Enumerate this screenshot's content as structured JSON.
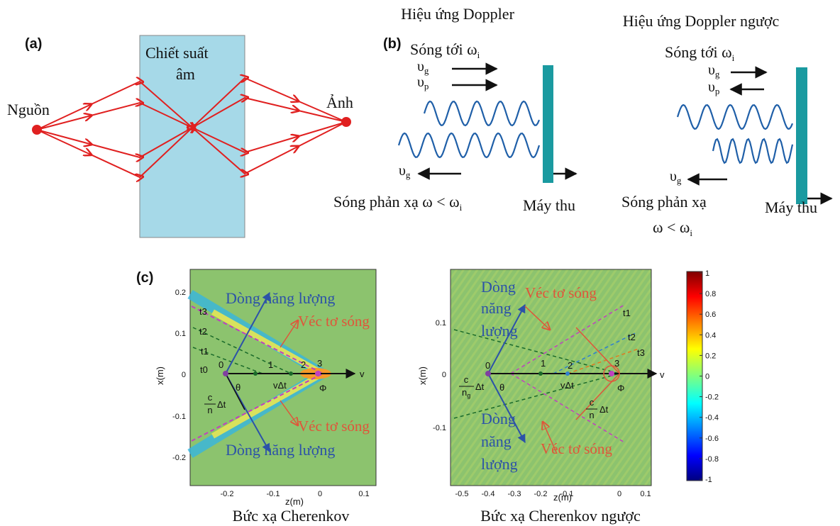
{
  "panel_a": {
    "label": "(a)",
    "slab_text": [
      "Chiết suất",
      "âm"
    ],
    "source": "Nguồn",
    "image": "Ảnh"
  },
  "panel_b": {
    "label": "(b)",
    "doppler": {
      "title": "Hiệu ứng Doppler",
      "incident": {
        "text": "Sóng tới ω",
        "sub": "i"
      },
      "vg": {
        "text": "υ",
        "sub": "g"
      },
      "vp": {
        "text": "υ",
        "sub": "p"
      },
      "reflected_vg": {
        "text": "υ",
        "sub": "g"
      },
      "reflected": {
        "text": "Sóng phản xạ ω < ω",
        "sub": "i"
      },
      "receiver": "Máy thu"
    },
    "inverse": {
      "title": "Hiệu ứng Doppler ngược",
      "incident": {
        "text": "Sóng tới ω",
        "sub": "i"
      },
      "vg": {
        "text": "υ",
        "sub": "g"
      },
      "vp": {
        "text": "υ",
        "sub": "p"
      },
      "reflected_vg": {
        "text": "υ",
        "sub": "g"
      },
      "reflected": [
        "Sóng phản xạ",
        {
          "text": "ω < ω",
          "sub": "i"
        }
      ],
      "receiver": "Máy thu"
    }
  },
  "panel_c": {
    "label": "(c)",
    "left": {
      "caption": "Bức xạ Cherenkov",
      "x_label": "z(m)",
      "y_label": "x(m)",
      "x_ticks": [
        "-0.2",
        "-0.1",
        "0",
        "0.1"
      ],
      "y_ticks": [
        "0.2",
        "0.1",
        "0",
        "-0.1",
        "-0.2"
      ],
      "energy_top": "Dòng năng lượng",
      "wave_top": "Véc tơ sóng",
      "wave_bottom": "Véc tơ sóng",
      "energy_bottom": "Dòng năng lượng",
      "times": [
        "t3",
        "t2",
        "t1",
        "t0"
      ],
      "points": [
        "0",
        "1",
        "2",
        "3"
      ],
      "theta": "θ",
      "vdt": "vΔt",
      "phi": "Φ",
      "v": "v",
      "frac": {
        "num": "c",
        "den": "n",
        "tail": "Δt"
      }
    },
    "right": {
      "caption": "Bức xạ Cherenkov ngược",
      "x_label": "z(m)",
      "y_label": "x(m)",
      "x_ticks": [
        "-0.5",
        "-0.4",
        "-0.3",
        "-0.2",
        "-0.1",
        "0",
        "0.1"
      ],
      "y_ticks": [
        "0.1",
        "0",
        "-0.1"
      ],
      "energy_top": [
        "Dòng",
        "năng",
        "lượng"
      ],
      "wave_top": "Véc tơ sóng",
      "energy_bottom": [
        "Dòng",
        "năng",
        "lượng"
      ],
      "wave_bottom": "Véc tơ sóng",
      "times": [
        "t1",
        "t2",
        "t3"
      ],
      "points": [
        "0",
        "1",
        "2",
        "3"
      ],
      "theta": "θ",
      "vdt": "vΔt",
      "phi": "Φ",
      "v": "v",
      "frac_g": {
        "num": "c",
        "den": "n",
        "den_sub": "g",
        "tail": "Δt"
      },
      "frac": {
        "num": "c",
        "den": "n",
        "tail": "Δt"
      }
    },
    "colorbar": {
      "ticks": [
        "1",
        "0.8",
        "0.6",
        "0.4",
        "0.2",
        "0",
        "-0.2",
        "-0.4",
        "-0.6",
        "-0.8",
        "-1"
      ]
    }
  }
}
